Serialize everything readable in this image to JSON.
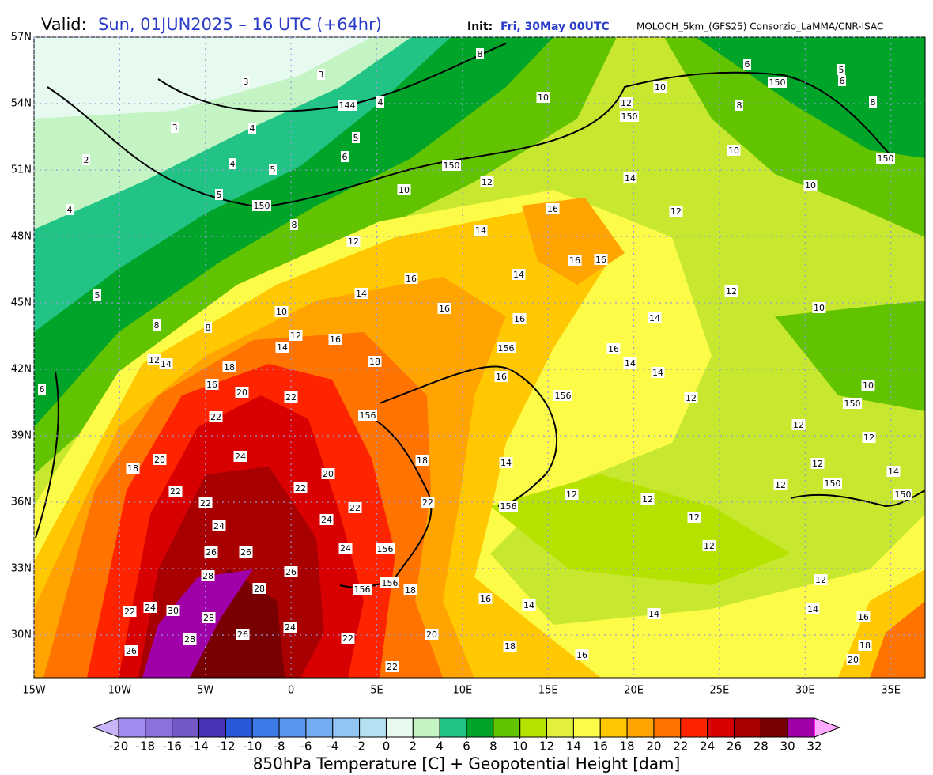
{
  "header": {
    "valid_label": "Valid:",
    "valid_time": "Sun, 01JUN2025 – 16 UTC (+64hr)",
    "init_label": "Init:",
    "init_time": "Fri, 30May 00UTC",
    "model": "MOLOCH_5km_(GFS25) Consorzio_LaMMA/CNR-ISAC"
  },
  "map": {
    "lat_ticks": [
      {
        "value": 57,
        "label": "57N"
      },
      {
        "value": 54,
        "label": "54N"
      },
      {
        "value": 51,
        "label": "51N"
      },
      {
        "value": 48,
        "label": "48N"
      },
      {
        "value": 45,
        "label": "45N"
      },
      {
        "value": 42,
        "label": "42N"
      },
      {
        "value": 39,
        "label": "39N"
      },
      {
        "value": 36,
        "label": "36N"
      },
      {
        "value": 33,
        "label": "33N"
      },
      {
        "value": 30,
        "label": "30N"
      }
    ],
    "lon_ticks": [
      {
        "value": -15,
        "label": "15W"
      },
      {
        "value": -10,
        "label": "10W"
      },
      {
        "value": -5,
        "label": "5W"
      },
      0,
      {
        "value": 5,
        "label": "5E"
      },
      {
        "value": 10,
        "label": "10E"
      },
      {
        "value": 15,
        "label": "15E"
      },
      {
        "value": 20,
        "label": "20E"
      },
      {
        "value": 25,
        "label": "25E"
      },
      {
        "value": 30,
        "label": "30E"
      },
      {
        "value": 35,
        "label": "35E"
      }
    ],
    "contour_labels": [
      3,
      3,
      3,
      4,
      4,
      144,
      5,
      6,
      2,
      4,
      5,
      5,
      4,
      150,
      8,
      5,
      8,
      8,
      6,
      8,
      10,
      10,
      12,
      150,
      150,
      6,
      5,
      6,
      8,
      8,
      10,
      150,
      10,
      150,
      10,
      12,
      14,
      12,
      16,
      14,
      12,
      16,
      16,
      14,
      16,
      14,
      12,
      10,
      10,
      16,
      16,
      14,
      12,
      16,
      14,
      156,
      16,
      12,
      14,
      18,
      18,
      14,
      14,
      16,
      16,
      20,
      22,
      156,
      10,
      150,
      12,
      22,
      156,
      12,
      12,
      24,
      20,
      18,
      18,
      14,
      20,
      12,
      22,
      22,
      150,
      12,
      14,
      150,
      22,
      22,
      22,
      156,
      12,
      12,
      12,
      24,
      24,
      24,
      156,
      12,
      26,
      26,
      28,
      26,
      28,
      156,
      156,
      18,
      12,
      16,
      14,
      22,
      24,
      30,
      28,
      14,
      14,
      16,
      24,
      26,
      28,
      20,
      22,
      18,
      18,
      16,
      26,
      22,
      20
    ]
  },
  "colorbar": {
    "ticks": [
      -20,
      -18,
      -16,
      -14,
      -12,
      -10,
      -8,
      -6,
      -4,
      -2,
      0,
      2,
      4,
      6,
      8,
      10,
      12,
      14,
      16,
      18,
      20,
      22,
      24,
      26,
      28,
      30,
      32
    ],
    "colors": [
      "#a08cf0",
      "#8c70dc",
      "#7458c8",
      "#4a32b4",
      "#2a58d8",
      "#3c7ae8",
      "#5896f0",
      "#74acf2",
      "#92c4f4",
      "#b4e2f2",
      "#e6faf0",
      "#c4f4c4",
      "#22c486",
      "#00a428",
      "#62c400",
      "#b6e200",
      "#e4f03e",
      "#fcfc48",
      "#ffc800",
      "#ffa400",
      "#ff7400",
      "#ff2400",
      "#d80000",
      "#a80000",
      "#780000",
      "#a000a8"
    ],
    "under_color": "#c8b4f8",
    "over_color": "#ff20ff",
    "top_color": "#ffa8ff",
    "title": "850hPa Temperature [C] + Geopotential Height [dam]"
  }
}
